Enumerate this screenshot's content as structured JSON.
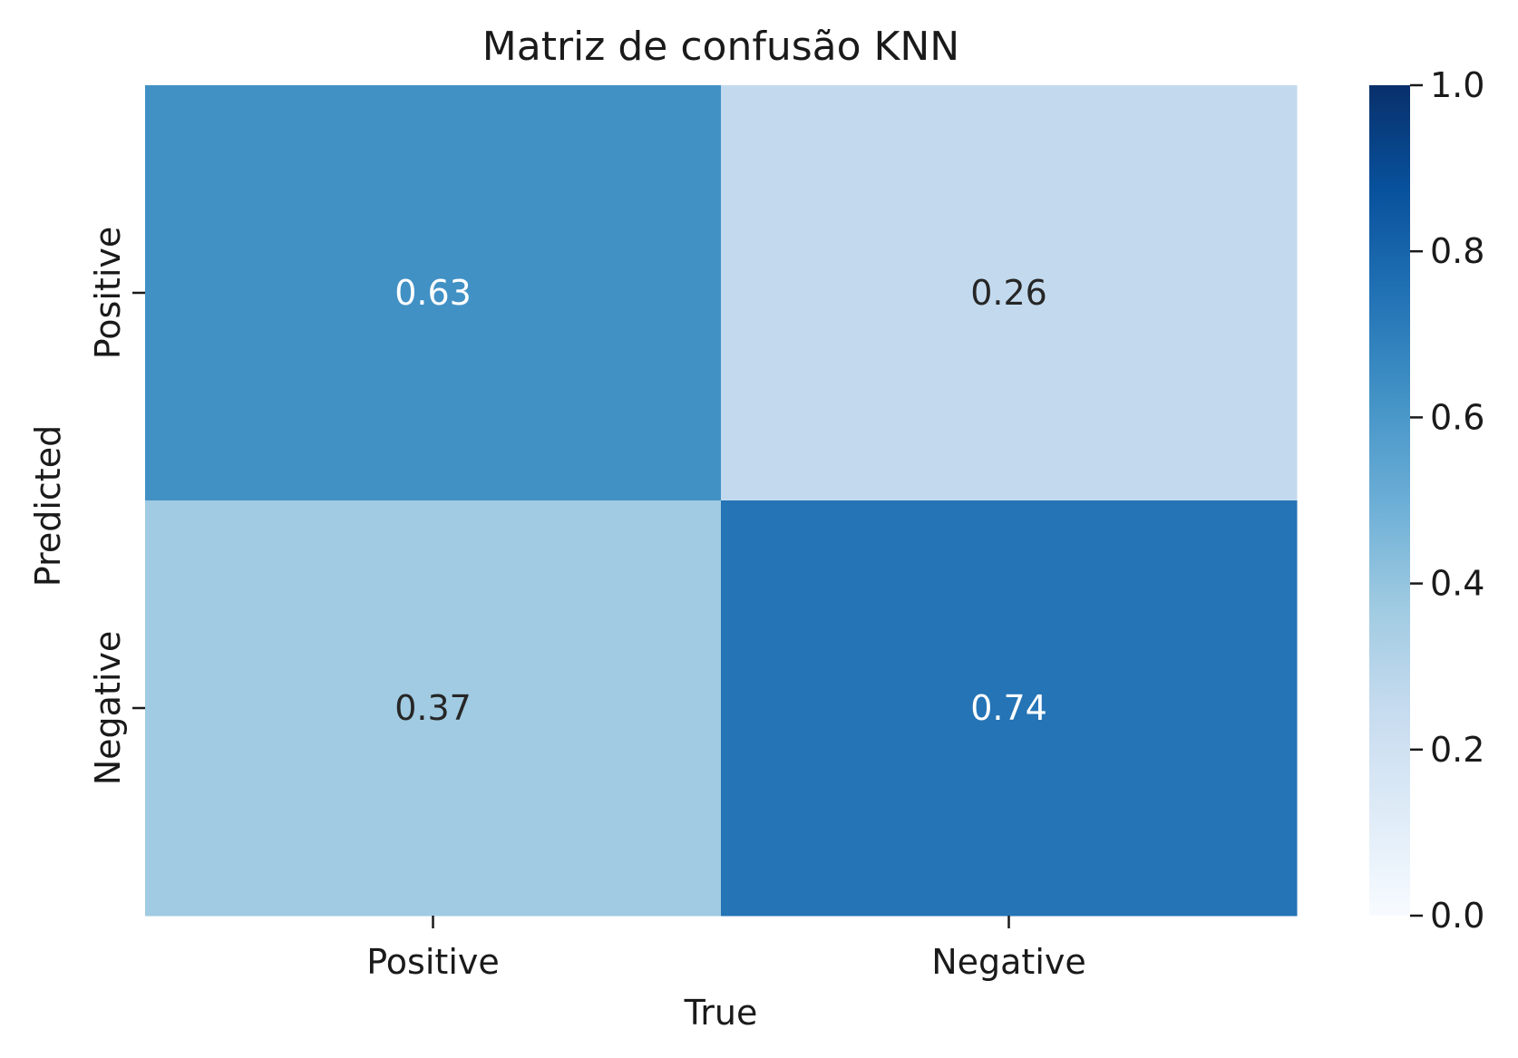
{
  "chart_data": {
    "type": "heatmap",
    "title": "Matriz de confusão KNN",
    "xlabel": "True",
    "ylabel": "Predicted",
    "x_categories": [
      "Positive",
      "Negative"
    ],
    "y_categories": [
      "Positive",
      "Negative"
    ],
    "values": [
      [
        0.63,
        0.26
      ],
      [
        0.37,
        0.74
      ]
    ],
    "value_labels": [
      [
        "0.63",
        "0.26"
      ],
      [
        "0.37",
        "0.74"
      ]
    ],
    "colorbar": {
      "range": [
        0,
        1
      ],
      "ticks": [
        0.0,
        0.2,
        0.4,
        0.6,
        0.8,
        1.0
      ],
      "tick_labels": [
        "0.0",
        "0.2",
        "0.4",
        "0.6",
        "0.8",
        "1.0"
      ]
    },
    "colormap": "Blues"
  }
}
